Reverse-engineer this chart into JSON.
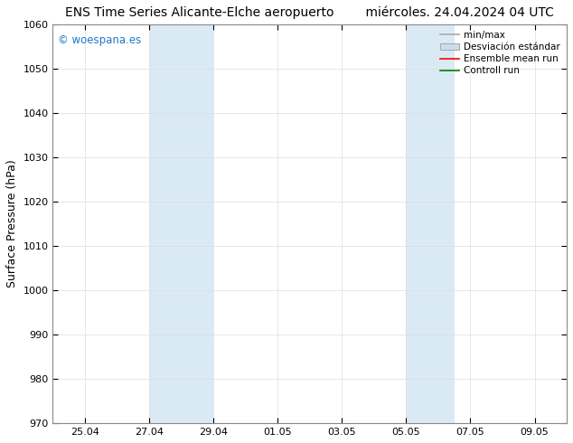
{
  "title": "ENS Time Series Alicante-Elche aeropuerto        miércoles. 24.04.2024 04 UTC",
  "ylabel": "Surface Pressure (hPa)",
  "ylim": [
    970,
    1060
  ],
  "yticks": [
    970,
    980,
    990,
    1000,
    1010,
    1020,
    1030,
    1040,
    1050,
    1060
  ],
  "xtick_labels": [
    "25.04",
    "27.04",
    "29.04",
    "01.05",
    "03.05",
    "05.05",
    "07.05",
    "09.05"
  ],
  "xtick_days_from_start": [
    1,
    3,
    5,
    7,
    9,
    11,
    13,
    15
  ],
  "xlim_days": [
    0,
    16
  ],
  "shaded_regions": [
    {
      "x_start": 3,
      "x_end": 5
    },
    {
      "x_start": 11,
      "x_end": 12.5
    }
  ],
  "shaded_color": "#daeaf5",
  "watermark_text": "© woespana.es",
  "watermark_color": "#1e78c8",
  "legend_labels": [
    "min/max",
    "Desviación estándar",
    "Ensemble mean run",
    "Controll run"
  ],
  "legend_line_colors": [
    "#aaaaaa",
    "#ccddee",
    "#ff0000",
    "#008000"
  ],
  "bg_color": "#ffffff",
  "grid_color": "#dddddd",
  "title_fontsize": 10,
  "tick_fontsize": 8,
  "ylabel_fontsize": 9,
  "legend_fontsize": 7.5
}
